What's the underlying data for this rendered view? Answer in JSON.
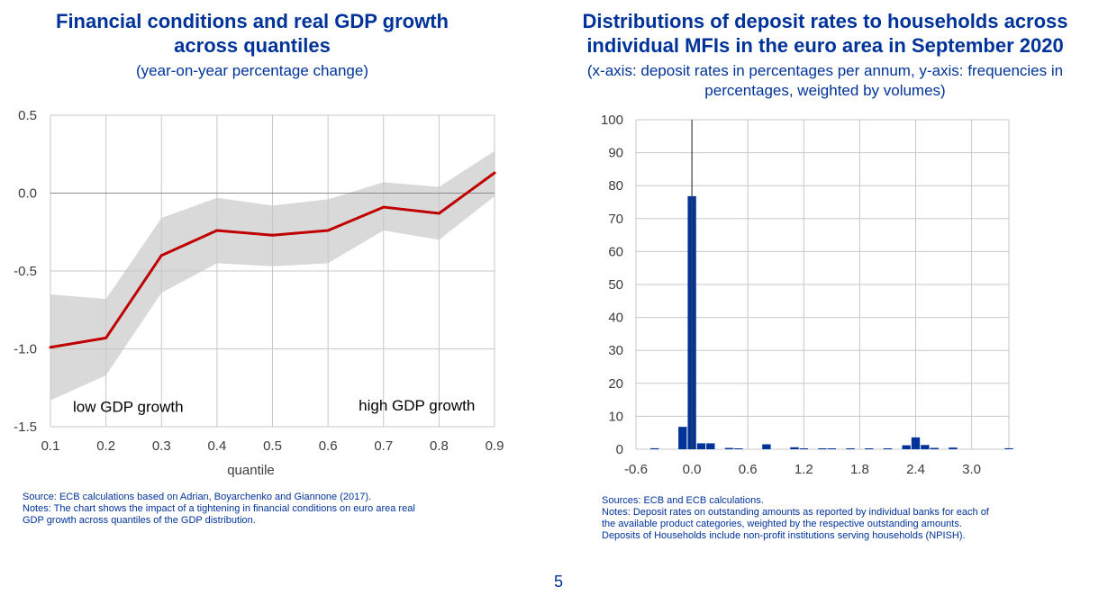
{
  "page_number": "5",
  "colors": {
    "title": "#003399",
    "line": "#c00000",
    "band": "#d9d9d9",
    "bar": "#003399",
    "grid": "#c8c8c8"
  },
  "left": {
    "title_lines": [
      "Financial conditions and real GDP growth",
      "across quantiles"
    ],
    "subtitle_lines": [
      "(year-on-year percentage change)"
    ],
    "notes": [
      "Source: ECB calculations based on Adrian, Boyarchenko and Giannone (2017).",
      "Notes: The chart shows the impact of a tightening in financial conditions on euro area real",
      "GDP growth across quantiles of the GDP distribution."
    ]
  },
  "right": {
    "title_lines": [
      "Distributions of deposit rates to households across",
      "individual MFIs in the euro area in September 2020"
    ],
    "subtitle_lines": [
      "(x-axis: deposit rates in percentages per annum, y-axis: frequencies in",
      "percentages, weighted by volumes)"
    ],
    "notes": [
      "Sources: ECB and ECB calculations.",
      "Notes: Deposit rates on outstanding amounts as reported by individual banks for each of",
      "the available product categories, weighted by the respective outstanding amounts.",
      "Deposits of Households include non-profit institutions serving households (NPISH)."
    ]
  },
  "chart_data": [
    {
      "type": "line",
      "title": "Financial conditions and real GDP growth across quantiles",
      "subtitle": "(year-on-year percentage change)",
      "xlabel": "quantile",
      "ylabel": "",
      "x": [
        0.1,
        0.2,
        0.3,
        0.4,
        0.5,
        0.6,
        0.7,
        0.8,
        0.9
      ],
      "x_tick_labels": [
        "0.1",
        "0.2",
        "0.3",
        "0.4",
        "0.5",
        "0.6",
        "0.7",
        "0.8",
        "0.9"
      ],
      "y_ticks": [
        0.5,
        0.0,
        -0.5,
        -1.0,
        -1.5
      ],
      "y_tick_labels": [
        "0.5",
        "0.0",
        "-0.5",
        "-1.0",
        "-1.5"
      ],
      "xlim": [
        0.1,
        0.9
      ],
      "ylim": [
        -1.5,
        0.5
      ],
      "grid": true,
      "series": [
        {
          "values": [
            -0.99,
            -0.93,
            -0.4,
            -0.24,
            -0.27,
            -0.24,
            -0.09,
            -0.13,
            0.13
          ]
        }
      ],
      "band": {
        "upper": [
          -0.65,
          -0.68,
          -0.16,
          -0.03,
          -0.08,
          -0.04,
          0.07,
          0.04,
          0.27
        ],
        "lower": [
          -1.33,
          -1.17,
          -0.64,
          -0.45,
          -0.47,
          -0.45,
          -0.24,
          -0.3,
          -0.02
        ]
      },
      "annotations": [
        {
          "text": "low GDP growth",
          "x": 0.24,
          "y": -1.37
        },
        {
          "text": "high GDP growth",
          "x": 0.76,
          "y": -1.36
        }
      ]
    },
    {
      "type": "bar",
      "title": "Distributions of deposit rates to households across individual MFIs in the euro area in September 2020",
      "subtitle": "(x-axis: deposit rates in percentages per annum, y-axis: frequencies in percentages, weighted by volumes)",
      "xlabel": "",
      "ylabel": "",
      "xlim": [
        -0.6,
        3.4
      ],
      "ylim": [
        0,
        100
      ],
      "x_ticks": [
        -0.6,
        0.0,
        0.6,
        1.2,
        1.8,
        2.4,
        3.0
      ],
      "x_tick_labels": [
        "-0.6",
        "0.0",
        "0.6",
        "1.2",
        "1.8",
        "2.4",
        "3.0"
      ],
      "y_ticks": [
        0,
        10,
        20,
        30,
        40,
        50,
        60,
        70,
        80,
        90,
        100
      ],
      "y_tick_labels": [
        "0",
        "10",
        "20",
        "30",
        "40",
        "50",
        "60",
        "70",
        "80",
        "90",
        "100"
      ],
      "grid": true,
      "vline_x": 0.0,
      "bin_width": 0.1,
      "bins": [
        {
          "x": -0.4,
          "value": 0.3
        },
        {
          "x": -0.1,
          "value": 6.8
        },
        {
          "x": 0.0,
          "value": 76.8
        },
        {
          "x": 0.1,
          "value": 1.8
        },
        {
          "x": 0.2,
          "value": 1.8
        },
        {
          "x": 0.4,
          "value": 0.4
        },
        {
          "x": 0.5,
          "value": 0.2
        },
        {
          "x": 0.8,
          "value": 1.5
        },
        {
          "x": 1.1,
          "value": 0.6
        },
        {
          "x": 1.2,
          "value": 0.2
        },
        {
          "x": 1.4,
          "value": 0.2
        },
        {
          "x": 1.5,
          "value": 0.2
        },
        {
          "x": 1.7,
          "value": 0.2
        },
        {
          "x": 1.9,
          "value": 0.2
        },
        {
          "x": 2.1,
          "value": 0.2
        },
        {
          "x": 2.3,
          "value": 1.2
        },
        {
          "x": 2.4,
          "value": 3.6
        },
        {
          "x": 2.5,
          "value": 1.3
        },
        {
          "x": 2.6,
          "value": 0.4
        },
        {
          "x": 2.8,
          "value": 0.5
        },
        {
          "x": 3.4,
          "value": 0.3
        }
      ]
    }
  ]
}
